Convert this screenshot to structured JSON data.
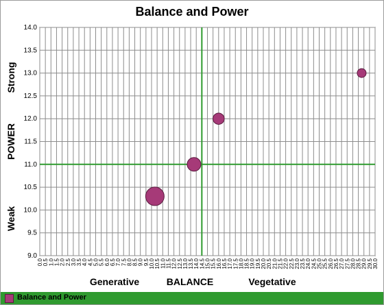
{
  "chart_data": {
    "type": "scatter",
    "title": "Balance and Power",
    "xlabel": "BALANCE",
    "ylabel": "POWER",
    "x_annotations": {
      "left": "Generative",
      "right": "Vegetative"
    },
    "y_annotations": {
      "bottom": "Weak",
      "top": "Strong"
    },
    "xlim": [
      0.0,
      30.0
    ],
    "x_tick_step": 0.5,
    "ylim": [
      9.0,
      14.0
    ],
    "y_tick_step": 0.5,
    "reference_lines": {
      "x": 14.5,
      "y": 11.0
    },
    "grid": true,
    "legend_position": "bottom",
    "series": [
      {
        "name": "Balance and Power",
        "color": "#a63a78",
        "points": [
          {
            "x": 10.3,
            "y": 10.3,
            "size": 3
          },
          {
            "x": 13.8,
            "y": 11.0,
            "size": 2
          },
          {
            "x": 16.0,
            "y": 12.0,
            "size": 1.5
          },
          {
            "x": 28.8,
            "y": 13.0,
            "size": 1
          }
        ]
      }
    ]
  }
}
